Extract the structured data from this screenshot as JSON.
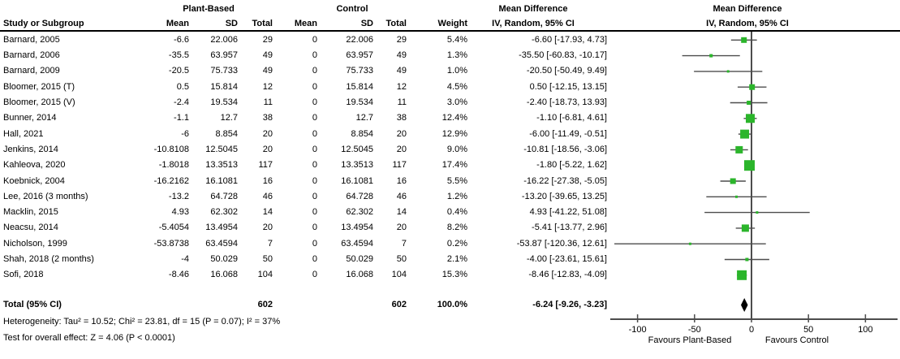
{
  "colors": {
    "marker_green": "#2bb52b",
    "line_gray": "#4d4d4d",
    "diamond_black": "#000000",
    "text_black": "#000000"
  },
  "headers": {
    "study": "Study or Subgroup",
    "plant_group": "Plant-Based",
    "control_group": "Control",
    "mean_difference": "Mean Difference",
    "mean": "Mean",
    "sd": "SD",
    "total": "Total",
    "weight": "Weight",
    "iv": "IV, Random, 95% CI"
  },
  "table": {
    "rows": [
      {
        "study": "Barnard, 2005",
        "p_mean": "-6.6",
        "p_sd": "22.006",
        "p_total": "29",
        "c_mean": "0",
        "c_sd": "22.006",
        "c_total": "29",
        "weight": "5.4%",
        "ci_text": "-6.60 [-17.93, 4.73]"
      },
      {
        "study": "Barnard, 2006",
        "p_mean": "-35.5",
        "p_sd": "63.957",
        "p_total": "49",
        "c_mean": "0",
        "c_sd": "63.957",
        "c_total": "49",
        "weight": "1.3%",
        "ci_text": "-35.50 [-60.83, -10.17]"
      },
      {
        "study": "Barnard, 2009",
        "p_mean": "-20.5",
        "p_sd": "75.733",
        "p_total": "49",
        "c_mean": "0",
        "c_sd": "75.733",
        "c_total": "49",
        "weight": "1.0%",
        "ci_text": "-20.50 [-50.49, 9.49]"
      },
      {
        "study": "Bloomer, 2015 (T)",
        "p_mean": "0.5",
        "p_sd": "15.814",
        "p_total": "12",
        "c_mean": "0",
        "c_sd": "15.814",
        "c_total": "12",
        "weight": "4.5%",
        "ci_text": "0.50 [-12.15, 13.15]"
      },
      {
        "study": "Bloomer, 2015 (V)",
        "p_mean": "-2.4",
        "p_sd": "19.534",
        "p_total": "11",
        "c_mean": "0",
        "c_sd": "19.534",
        "c_total": "11",
        "weight": "3.0%",
        "ci_text": "-2.40 [-18.73, 13.93]"
      },
      {
        "study": "Bunner, 2014",
        "p_mean": "-1.1",
        "p_sd": "12.7",
        "p_total": "38",
        "c_mean": "0",
        "c_sd": "12.7",
        "c_total": "38",
        "weight": "12.4%",
        "ci_text": "-1.10 [-6.81, 4.61]"
      },
      {
        "study": "Hall, 2021",
        "p_mean": "-6",
        "p_sd": "8.854",
        "p_total": "20",
        "c_mean": "0",
        "c_sd": "8.854",
        "c_total": "20",
        "weight": "12.9%",
        "ci_text": "-6.00 [-11.49, -0.51]"
      },
      {
        "study": "Jenkins, 2014",
        "p_mean": "-10.8108",
        "p_sd": "12.5045",
        "p_total": "20",
        "c_mean": "0",
        "c_sd": "12.5045",
        "c_total": "20",
        "weight": "9.0%",
        "ci_text": "-10.81 [-18.56, -3.06]"
      },
      {
        "study": "Kahleova, 2020",
        "p_mean": "-1.8018",
        "p_sd": "13.3513",
        "p_total": "117",
        "c_mean": "0",
        "c_sd": "13.3513",
        "c_total": "117",
        "weight": "17.4%",
        "ci_text": "-1.80 [-5.22, 1.62]"
      },
      {
        "study": "Koebnick, 2004",
        "p_mean": "-16.2162",
        "p_sd": "16.1081",
        "p_total": "16",
        "c_mean": "0",
        "c_sd": "16.1081",
        "c_total": "16",
        "weight": "5.5%",
        "ci_text": "-16.22 [-27.38, -5.05]"
      },
      {
        "study": "Lee, 2016 (3 months)",
        "p_mean": "-13.2",
        "p_sd": "64.728",
        "p_total": "46",
        "c_mean": "0",
        "c_sd": "64.728",
        "c_total": "46",
        "weight": "1.2%",
        "ci_text": "-13.20 [-39.65, 13.25]"
      },
      {
        "study": "Macklin, 2015",
        "p_mean": "4.93",
        "p_sd": "62.302",
        "p_total": "14",
        "c_mean": "0",
        "c_sd": "62.302",
        "c_total": "14",
        "weight": "0.4%",
        "ci_text": "4.93 [-41.22, 51.08]"
      },
      {
        "study": "Neacsu, 2014",
        "p_mean": "-5.4054",
        "p_sd": "13.4954",
        "p_total": "20",
        "c_mean": "0",
        "c_sd": "13.4954",
        "c_total": "20",
        "weight": "8.2%",
        "ci_text": "-5.41 [-13.77, 2.96]"
      },
      {
        "study": "Nicholson, 1999",
        "p_mean": "-53.8738",
        "p_sd": "63.4594",
        "p_total": "7",
        "c_mean": "0",
        "c_sd": "63.4594",
        "c_total": "7",
        "weight": "0.2%",
        "ci_text": "-53.87 [-120.36, 12.61]"
      },
      {
        "study": "Shah, 2018 (2 months)",
        "p_mean": "-4",
        "p_sd": "50.029",
        "p_total": "50",
        "c_mean": "0",
        "c_sd": "50.029",
        "c_total": "50",
        "weight": "2.1%",
        "ci_text": "-4.00 [-23.61, 15.61]"
      },
      {
        "study": "Sofi, 2018",
        "p_mean": "-8.46",
        "p_sd": "16.068",
        "p_total": "104",
        "c_mean": "0",
        "c_sd": "16.068",
        "c_total": "104",
        "weight": "15.3%",
        "ci_text": "-8.46 [-12.83, -4.09]"
      }
    ],
    "total_row": {
      "label": "Total (95% CI)",
      "p_total": "602",
      "c_total": "602",
      "weight": "100.0%",
      "ci_text": "-6.24 [-9.26, -3.23]"
    }
  },
  "footnotes": {
    "heterogeneity": "Heterogeneity: Tau² = 10.52; Chi² = 23.81, df = 15 (P = 0.07); I² = 37%",
    "overall_effect": "Test for overall effect: Z = 4.06 (P < 0.0001)"
  },
  "axis": {
    "favours_left": "Favours Plant-Based",
    "favours_right": "Favours Control"
  },
  "chart_data": {
    "type": "forest",
    "title": "Mean Difference",
    "effect_measure": "IV, Random, 95% CI",
    "x_ticks": [
      -100,
      -50,
      0,
      50,
      100
    ],
    "xlim": [
      -124,
      128
    ],
    "zero_line": 0,
    "favours_left": "Favours Plant-Based",
    "favours_right": "Favours Control",
    "studies": [
      {
        "name": "Barnard, 2005",
        "md": -6.6,
        "lo": -17.93,
        "hi": 4.73,
        "weight": 5.4
      },
      {
        "name": "Barnard, 2006",
        "md": -35.5,
        "lo": -60.83,
        "hi": -10.17,
        "weight": 1.3
      },
      {
        "name": "Barnard, 2009",
        "md": -20.5,
        "lo": -50.49,
        "hi": 9.49,
        "weight": 1.0
      },
      {
        "name": "Bloomer, 2015 (T)",
        "md": 0.5,
        "lo": -12.15,
        "hi": 13.15,
        "weight": 4.5
      },
      {
        "name": "Bloomer, 2015 (V)",
        "md": -2.4,
        "lo": -18.73,
        "hi": 13.93,
        "weight": 3.0
      },
      {
        "name": "Bunner, 2014",
        "md": -1.1,
        "lo": -6.81,
        "hi": 4.61,
        "weight": 12.4
      },
      {
        "name": "Hall, 2021",
        "md": -6.0,
        "lo": -11.49,
        "hi": -0.51,
        "weight": 12.9
      },
      {
        "name": "Jenkins, 2014",
        "md": -10.81,
        "lo": -18.56,
        "hi": -3.06,
        "weight": 9.0
      },
      {
        "name": "Kahleova, 2020",
        "md": -1.8,
        "lo": -5.22,
        "hi": 1.62,
        "weight": 17.4
      },
      {
        "name": "Koebnick, 2004",
        "md": -16.22,
        "lo": -27.38,
        "hi": -5.05,
        "weight": 5.5
      },
      {
        "name": "Lee, 2016 (3 months)",
        "md": -13.2,
        "lo": -39.65,
        "hi": 13.25,
        "weight": 1.2
      },
      {
        "name": "Macklin, 2015",
        "md": 4.93,
        "lo": -41.22,
        "hi": 51.08,
        "weight": 0.4
      },
      {
        "name": "Neacsu, 2014",
        "md": -5.41,
        "lo": -13.77,
        "hi": 2.96,
        "weight": 8.2
      },
      {
        "name": "Nicholson, 1999",
        "md": -53.87,
        "lo": -120.36,
        "hi": 12.61,
        "weight": 0.2
      },
      {
        "name": "Shah, 2018 (2 months)",
        "md": -4.0,
        "lo": -23.61,
        "hi": 15.61,
        "weight": 2.1
      },
      {
        "name": "Sofi, 2018",
        "md": -8.46,
        "lo": -12.83,
        "hi": -4.09,
        "weight": 15.3
      }
    ],
    "total": {
      "name": "Total (95% CI)",
      "md": -6.24,
      "lo": -9.26,
      "hi": -3.23,
      "weight": 100.0
    }
  }
}
